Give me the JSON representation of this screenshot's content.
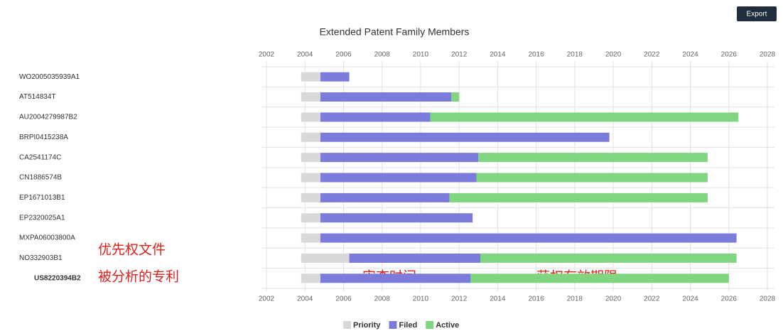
{
  "export_button": "Export",
  "annotations": [
    "优先权文件",
    "被分析的专利",
    "审查时间",
    "获权有效期限"
  ],
  "chart_data": {
    "type": "gantt",
    "title": "Extended Patent Family Members",
    "categories": [
      "WO2005035939A1",
      "AT514834T",
      "AU2004279987B2",
      "BRPI0415238A",
      "CA2541174C",
      "CN1886574B",
      "EP1671013B1",
      "EP2320025A1",
      "MXPA06003800A",
      "NO332903B1",
      "US8220394B2"
    ],
    "start": [
      2003.8,
      2003.8,
      2003.8,
      2003.8,
      2003.8,
      2003.8,
      2003.8,
      2003.8,
      2003.8,
      2003.8,
      2003.8
    ],
    "series": [
      {
        "name": "Priority",
        "color": "#d9d9d9",
        "values": [
          1.0,
          1.0,
          1.0,
          1.0,
          1.0,
          1.0,
          1.0,
          1.0,
          1.0,
          2.5,
          1.0
        ]
      },
      {
        "name": "Filed",
        "color": "#7b7bdb",
        "values": [
          1.5,
          6.8,
          5.7,
          15.0,
          8.2,
          8.1,
          6.7,
          7.9,
          21.6,
          6.8,
          7.8
        ]
      },
      {
        "name": "Active",
        "color": "#80d680",
        "values": [
          0,
          0.4,
          16.0,
          0,
          11.9,
          12.0,
          13.4,
          0,
          0,
          13.3,
          13.4
        ]
      }
    ],
    "xlim": [
      2002,
      2028
    ],
    "xticks": [
      2002,
      2004,
      2006,
      2008,
      2010,
      2012,
      2014,
      2016,
      2018,
      2020,
      2022,
      2024,
      2026,
      2028
    ],
    "grid": true,
    "legend": "bottom"
  }
}
